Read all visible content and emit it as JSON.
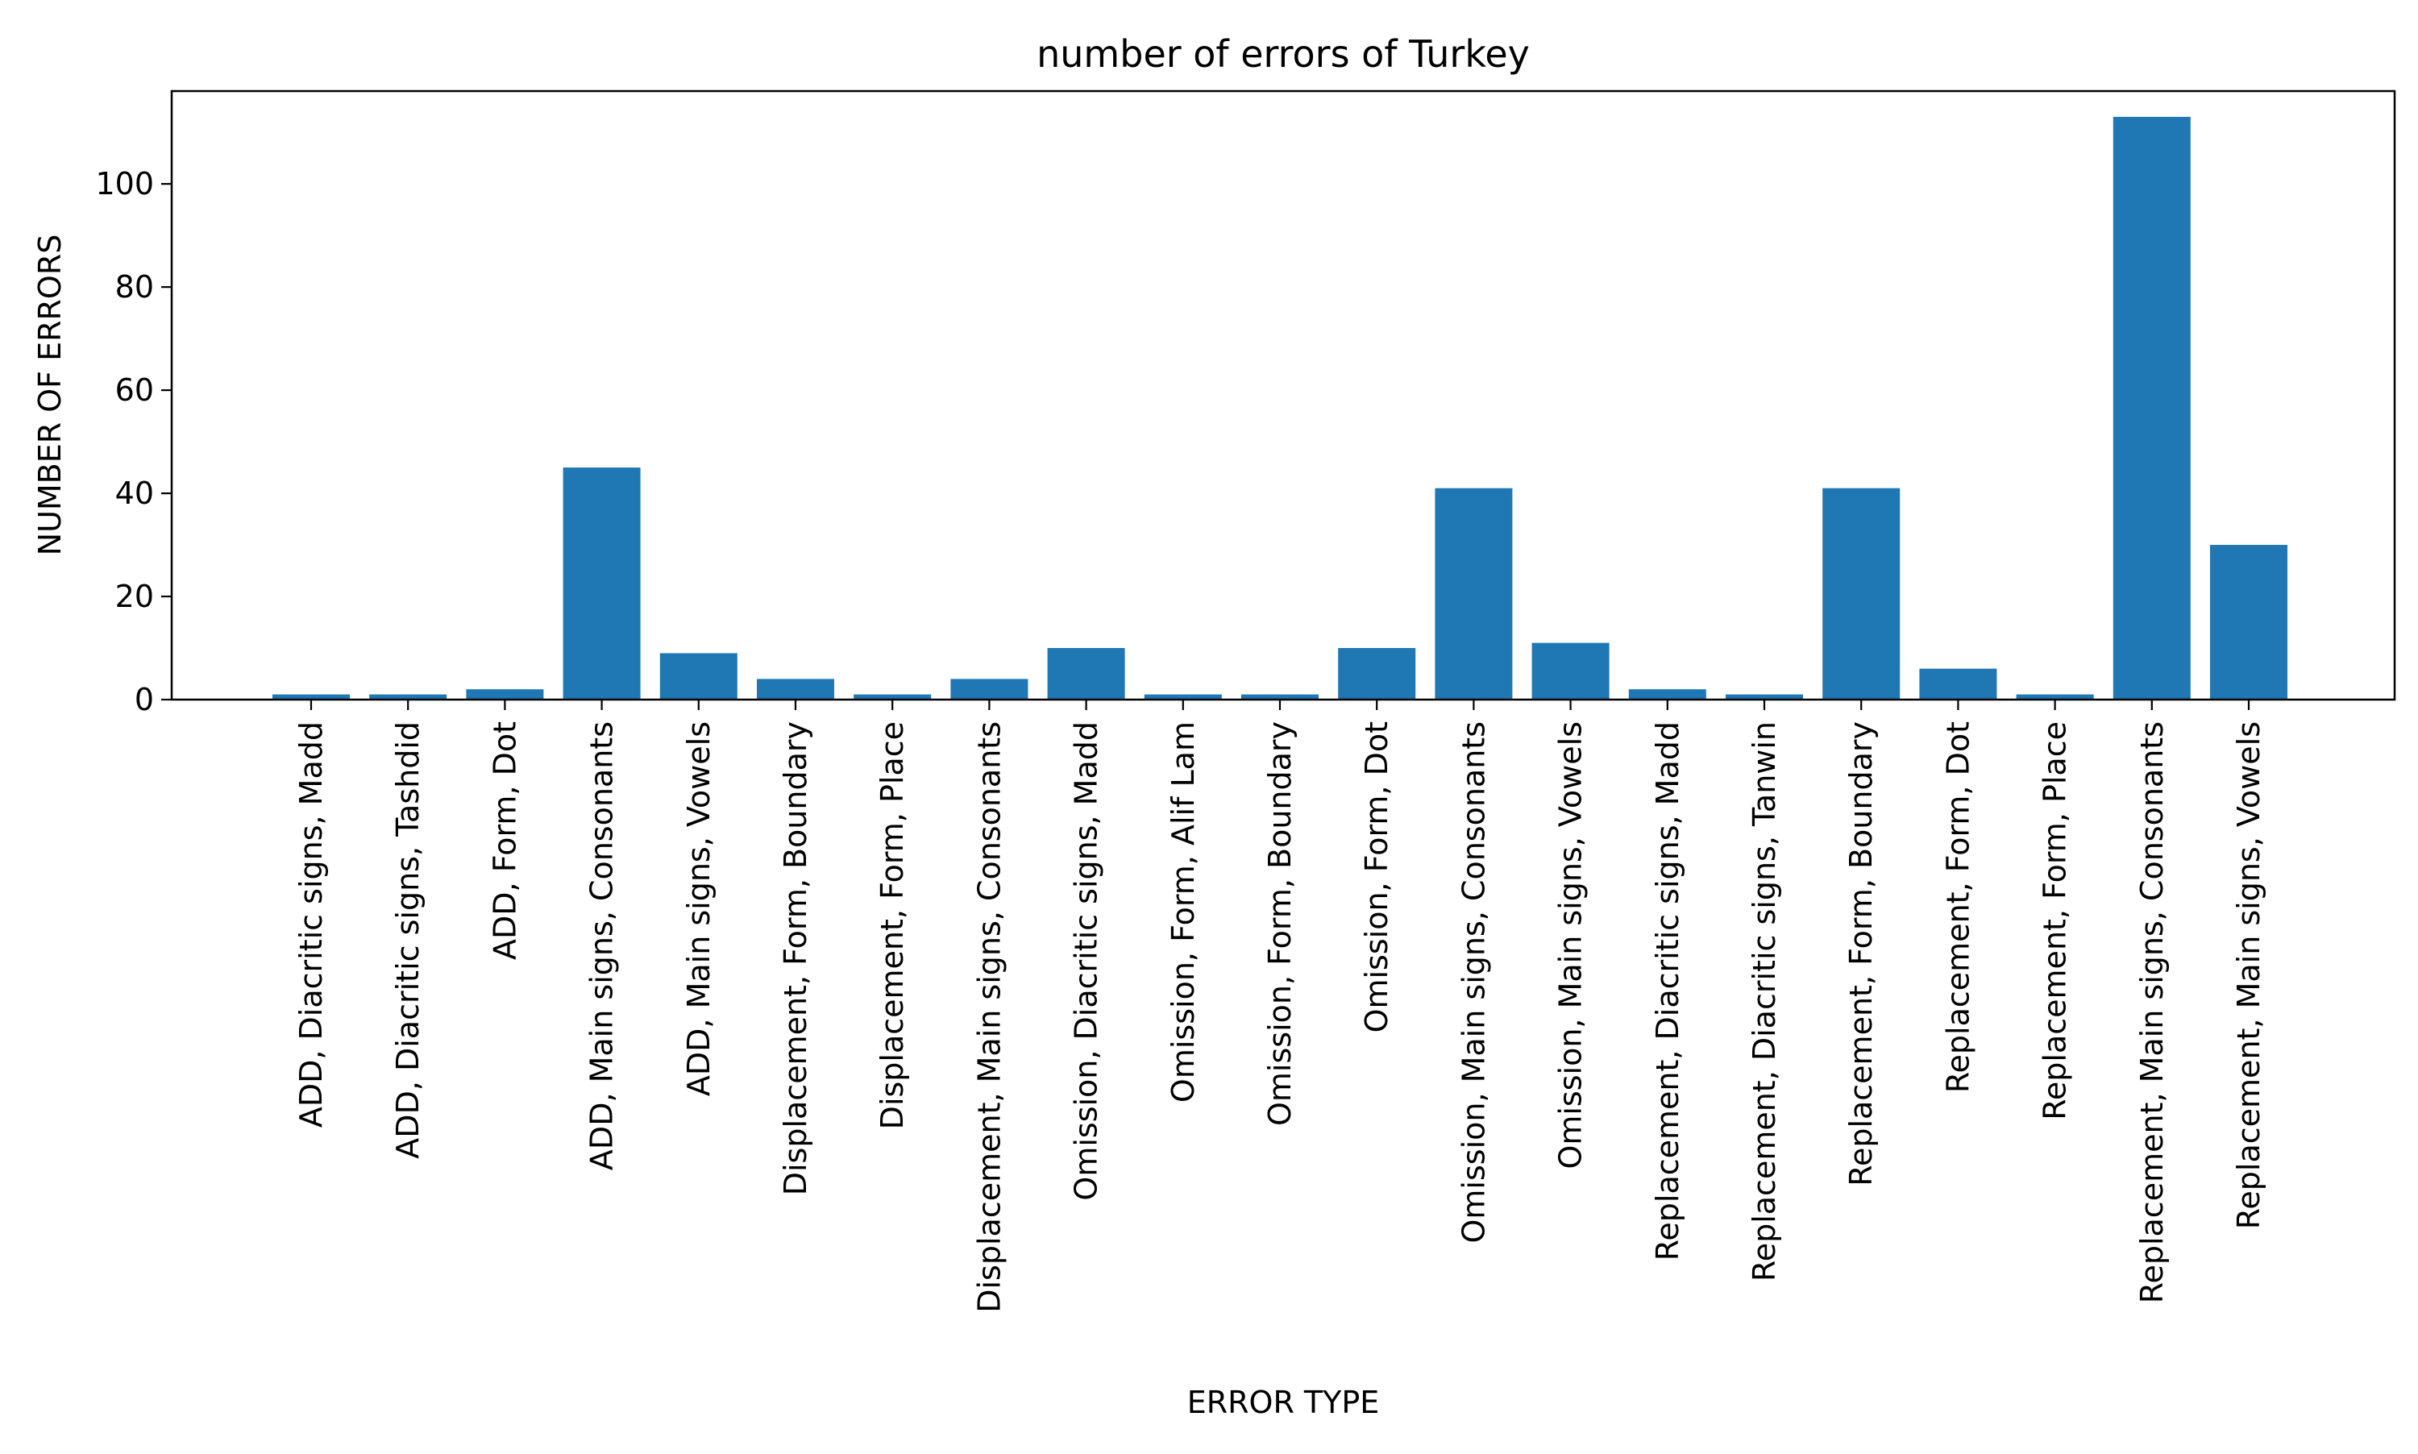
{
  "chart_data": {
    "type": "bar",
    "title": "number of errors of Turkey",
    "xlabel": "ERROR TYPE",
    "ylabel": "NUMBER OF ERRORS",
    "ylim": [
      0,
      118
    ],
    "yticks": [
      0,
      20,
      40,
      60,
      80,
      100
    ],
    "grid": false,
    "bar_color": "#1f77b4",
    "categories": [
      "ADD, Diacritic signs, Madd",
      "ADD, Diacritic signs, Tashdid",
      "ADD, Form, Dot",
      "ADD, Main signs, Consonants",
      "ADD, Main signs, Vowels",
      "Displacement, Form, Boundary",
      "Displacement, Form, Place",
      "Displacement, Main signs, Consonants",
      "Omission, Diacritic signs, Madd",
      "Omission, Form, Alif Lam",
      "Omission, Form, Boundary",
      "Omission, Form, Dot",
      "Omission, Main signs, Consonants",
      "Omission, Main signs, Vowels",
      "Replacement, Diacritic signs, Madd",
      "Replacement, Diacritic signs, Tanwin",
      "Replacement, Form, Boundary",
      "Replacement, Form, Dot",
      "Replacement, Form, Place",
      "Replacement, Main signs, Consonants",
      "Replacement, Main signs, Vowels"
    ],
    "values": [
      1,
      1,
      2,
      45,
      9,
      4,
      1,
      4,
      10,
      1,
      1,
      10,
      41,
      11,
      2,
      1,
      41,
      6,
      1,
      113,
      30
    ]
  }
}
